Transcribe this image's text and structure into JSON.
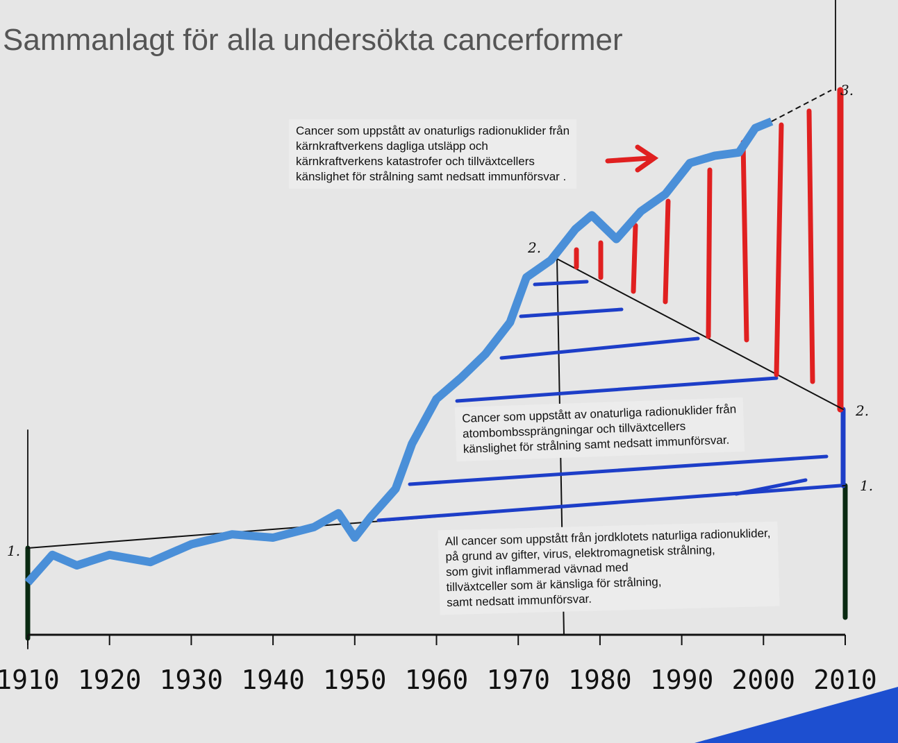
{
  "chart_data": {
    "type": "line",
    "title": "Sammanlagt för alla undersökta cancerformer",
    "x": [
      1910,
      1913,
      1916,
      1920,
      1925,
      1930,
      1935,
      1940,
      1945,
      1948,
      1950,
      1952,
      1955,
      1957,
      1960,
      1963,
      1966,
      1969,
      1971,
      1974,
      1977,
      1979,
      1982,
      1985,
      1988,
      1991,
      1994,
      1997,
      1999,
      2001
    ],
    "series": [
      {
        "color": "#4a8fd8",
        "values": [
          9.4,
          14.4,
          12.5,
          14.4,
          13.1,
          16.3,
          18.1,
          17.5,
          19.4,
          21.9,
          17.5,
          21.3,
          26.3,
          34.4,
          42.5,
          46.3,
          50.6,
          56.3,
          64.4,
          67.5,
          73.1,
          75.6,
          71.3,
          76.3,
          79.4,
          85.0,
          86.3,
          86.9,
          91.3,
          92.5
        ]
      }
    ],
    "xlim": [
      1910,
      2010
    ],
    "ylim": [
      0,
      100
    ],
    "xticks": [
      1910,
      1920,
      1930,
      1940,
      1950,
      1960,
      1970,
      1980,
      1990,
      2000,
      2010
    ],
    "annotations": [
      {
        "lines": [
          "Cancer som uppstått av onaturligs radionuklider från",
          "kärnkraftverkens dagliga utsläpp och",
          "kärnkraftverkens katastrofer och tillväxtcellers",
          "känslighet för strålning samt nedsatt immunförsvar ."
        ]
      },
      {
        "lines": [
          "Cancer som uppstått av onaturliga radionuklider från",
          "atombombssprängningar och tillväxtcellers",
          "känslighet för strålning samt nedsatt immunförsvar."
        ]
      },
      {
        "lines": [
          "All cancer som uppstått från jordklotets naturliga radionuklider,",
          "på grund av gifter, virus, elektromagnetisk strålning,",
          "som givit inflammerad vävnad med",
          "tillväxtceller som är känsliga för strålning,",
          "samt nedsatt immunförsvar."
        ]
      }
    ],
    "markers": [
      "1.",
      "1.",
      "2.",
      "2.",
      "3."
    ]
  }
}
